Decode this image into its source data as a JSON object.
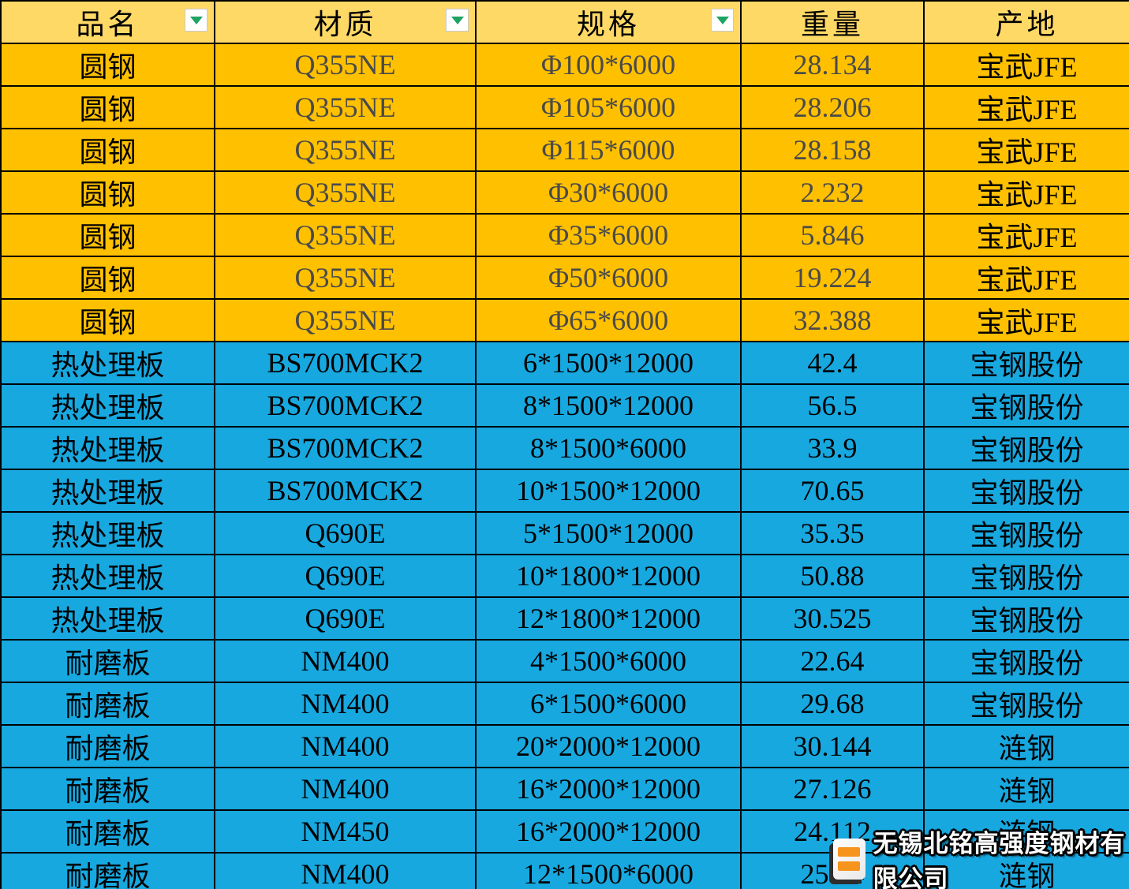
{
  "table": {
    "columns": [
      {
        "label": "品名",
        "filter": true
      },
      {
        "label": "材质",
        "filter": true
      },
      {
        "label": "规格",
        "filter": true
      },
      {
        "label": "重量",
        "filter": false
      },
      {
        "label": "产地",
        "filter": false
      }
    ],
    "rows": [
      {
        "product": "圆钢",
        "material": "Q355NE",
        "spec": "Φ100*6000",
        "weight": "28.134",
        "origin": "宝武JFE",
        "section": "yellow"
      },
      {
        "product": "圆钢",
        "material": "Q355NE",
        "spec": "Φ105*6000",
        "weight": "28.206",
        "origin": "宝武JFE",
        "section": "yellow"
      },
      {
        "product": "圆钢",
        "material": "Q355NE",
        "spec": "Φ115*6000",
        "weight": "28.158",
        "origin": "宝武JFE",
        "section": "yellow"
      },
      {
        "product": "圆钢",
        "material": "Q355NE",
        "spec": "Φ30*6000",
        "weight": "2.232",
        "origin": "宝武JFE",
        "section": "yellow"
      },
      {
        "product": "圆钢",
        "material": "Q355NE",
        "spec": "Φ35*6000",
        "weight": "5.846",
        "origin": "宝武JFE",
        "section": "yellow"
      },
      {
        "product": "圆钢",
        "material": "Q355NE",
        "spec": "Φ50*6000",
        "weight": "19.224",
        "origin": "宝武JFE",
        "section": "yellow"
      },
      {
        "product": "圆钢",
        "material": "Q355NE",
        "spec": "Φ65*6000",
        "weight": "32.388",
        "origin": "宝武JFE",
        "section": "yellow"
      },
      {
        "product": "热处理板",
        "material": "BS700MCK2",
        "spec": "6*1500*12000",
        "weight": "42.4",
        "origin": "宝钢股份",
        "section": "blue"
      },
      {
        "product": "热处理板",
        "material": "BS700MCK2",
        "spec": "8*1500*12000",
        "weight": "56.5",
        "origin": "宝钢股份",
        "section": "blue"
      },
      {
        "product": "热处理板",
        "material": "BS700MCK2",
        "spec": "8*1500*6000",
        "weight": "33.9",
        "origin": "宝钢股份",
        "section": "blue"
      },
      {
        "product": "热处理板",
        "material": "BS700MCK2",
        "spec": "10*1500*12000",
        "weight": "70.65",
        "origin": "宝钢股份",
        "section": "blue"
      },
      {
        "product": "热处理板",
        "material": "Q690E",
        "spec": "5*1500*12000",
        "weight": "35.35",
        "origin": "宝钢股份",
        "section": "blue"
      },
      {
        "product": "热处理板",
        "material": "Q690E",
        "spec": "10*1800*12000",
        "weight": "50.88",
        "origin": "宝钢股份",
        "section": "blue"
      },
      {
        "product": "热处理板",
        "material": "Q690E",
        "spec": "12*1800*12000",
        "weight": "30.525",
        "origin": "宝钢股份",
        "section": "blue"
      },
      {
        "product": "耐磨板",
        "material": "NM400",
        "spec": "4*1500*6000",
        "weight": "22.64",
        "origin": "宝钢股份",
        "section": "blue"
      },
      {
        "product": "耐磨板",
        "material": "NM400",
        "spec": "6*1500*6000",
        "weight": "29.68",
        "origin": "宝钢股份",
        "section": "blue"
      },
      {
        "product": "耐磨板",
        "material": "NM400",
        "spec": "20*2000*12000",
        "weight": "30.144",
        "origin": "涟钢",
        "section": "blue"
      },
      {
        "product": "耐磨板",
        "material": "NM400",
        "spec": "16*2000*12000",
        "weight": "27.126",
        "origin": "涟钢",
        "section": "blue"
      },
      {
        "product": "耐磨板",
        "material": "NM450",
        "spec": "16*2000*12000",
        "weight": "24.112",
        "origin": "涟钢",
        "section": "blue"
      },
      {
        "product": "耐磨板",
        "material": "NM400",
        "spec": "12*1500*6000",
        "weight": "25.44",
        "origin": "涟钢",
        "section": "blue"
      }
    ]
  },
  "watermark": {
    "company": "无锡北铭高强度钢材有限公司",
    "logo": "beiming-logo"
  },
  "colors": {
    "header_bg": "#FFD966",
    "yellow_row_bg": "#FFC000",
    "blue_row_bg": "#17A8E0",
    "border": "#000000",
    "yellow_secondary_text": "#4a4a4a",
    "filter_arrow_green": "#1EA362",
    "logo_orange": "#F7941E"
  }
}
